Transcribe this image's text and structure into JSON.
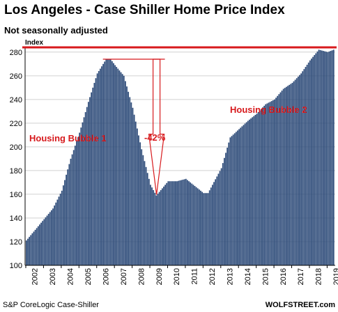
{
  "chart_data": {
    "type": "bar",
    "title": "Los Angeles - Case Shiller Home Price Index",
    "subtitle": "Not seasonally adjusted",
    "ylabel": "Index",
    "ylim": [
      100,
      284
    ],
    "yticks": [
      100,
      120,
      140,
      160,
      180,
      200,
      220,
      240,
      260,
      280
    ],
    "xticks": [
      "2002",
      "2003",
      "2004",
      "2005",
      "2006",
      "2007",
      "2008",
      "2009",
      "2010",
      "2011",
      "2012",
      "2013",
      "2014",
      "2015",
      "2016",
      "2017",
      "2018",
      "2019"
    ],
    "grid": true,
    "bar_color": "#2c4a78",
    "annotation_color": "#d7191c",
    "start": "2002-01",
    "end": "2019-05",
    "anchors": [
      [
        "2002-01",
        121
      ],
      [
        "2002-07",
        130
      ],
      [
        "2003-01",
        139
      ],
      [
        "2003-07",
        148
      ],
      [
        "2004-01",
        163
      ],
      [
        "2004-07",
        190
      ],
      [
        "2005-01",
        212
      ],
      [
        "2005-07",
        238
      ],
      [
        "2006-01",
        262
      ],
      [
        "2006-07",
        274
      ],
      [
        "2006-10",
        274
      ],
      [
        "2007-01",
        269
      ],
      [
        "2007-07",
        260
      ],
      [
        "2008-01",
        233
      ],
      [
        "2008-07",
        198
      ],
      [
        "2009-01",
        168
      ],
      [
        "2009-05",
        159
      ],
      [
        "2009-09",
        165
      ],
      [
        "2010-01",
        171
      ],
      [
        "2010-07",
        171
      ],
      [
        "2011-01",
        173
      ],
      [
        "2011-07",
        167
      ],
      [
        "2012-01",
        161
      ],
      [
        "2012-04",
        161
      ],
      [
        "2012-07",
        168
      ],
      [
        "2013-01",
        182
      ],
      [
        "2013-07",
        208
      ],
      [
        "2014-01",
        215
      ],
      [
        "2014-07",
        222
      ],
      [
        "2015-01",
        228
      ],
      [
        "2015-07",
        236
      ],
      [
        "2016-01",
        240
      ],
      [
        "2016-07",
        249
      ],
      [
        "2017-01",
        254
      ],
      [
        "2017-07",
        262
      ],
      [
        "2018-01",
        273
      ],
      [
        "2018-07",
        282
      ],
      [
        "2019-01",
        280
      ],
      [
        "2019-05",
        282
      ]
    ],
    "annotations": [
      {
        "text": "Housing Bubble 1"
      },
      {
        "text": "Housing Bubble 2"
      },
      {
        "text": "-42%"
      }
    ],
    "peak": {
      "date": "2006-09",
      "value": 274
    },
    "trough": {
      "date": "2009-05",
      "value": 159
    },
    "recent_high_line": 284
  },
  "footer": {
    "source": "S&P CoreLogic Case-Shiller",
    "brand": "WOLFSTREET.com"
  }
}
